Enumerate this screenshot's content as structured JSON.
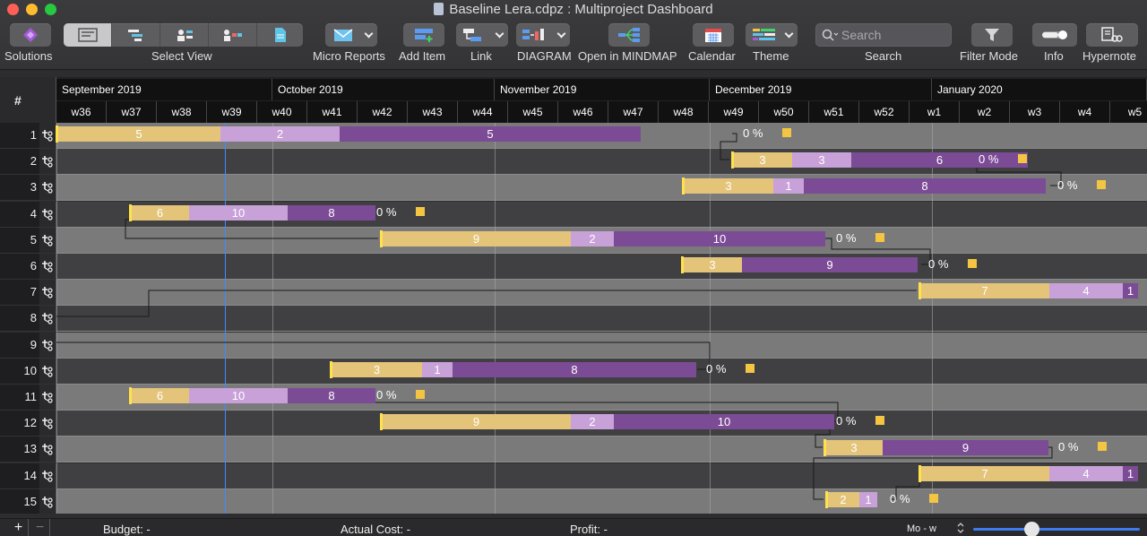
{
  "window": {
    "title": "Baseline  Lera.cdpz : Multiproject Dashboard"
  },
  "toolbar": {
    "solutions": "Solutions",
    "select_view": "Select View",
    "micro_reports": "Micro Reports",
    "add_item": "Add Item",
    "link": "Link",
    "diagram": "DIAGRAM",
    "open_mindmap": "Open in MINDMAP",
    "calendar": "Calendar",
    "theme": "Theme",
    "search_label": "Search",
    "search_placeholder": "Search",
    "filter_mode": "Filter Mode",
    "info": "Info",
    "hypernote": "Hypernote"
  },
  "gantt": {
    "row_header": "#",
    "months": [
      "September 2019",
      "October 2019",
      "November 2019",
      "December 2019",
      "January 2020"
    ],
    "weeks": [
      "w36",
      "w37",
      "w38",
      "w39",
      "w40",
      "w41",
      "w42",
      "w43",
      "w44",
      "w45",
      "w46",
      "w47",
      "w48",
      "w49",
      "w50",
      "w51",
      "w52",
      "w1",
      "w2",
      "w3",
      "w4",
      "w5"
    ],
    "rows": [
      {
        "num": "1",
        "segments": [
          "5",
          "2",
          "5"
        ],
        "percent": "0 %"
      },
      {
        "num": "2",
        "segments": [
          "3",
          "3",
          "6"
        ],
        "percent": "0 %"
      },
      {
        "num": "3",
        "segments": [
          "3",
          "1",
          "8"
        ],
        "percent": "0 %"
      },
      {
        "num": "4",
        "segments": [
          "6",
          "10",
          "8"
        ],
        "percent": "0 %"
      },
      {
        "num": "5",
        "segments": [
          "9",
          "2",
          "10"
        ],
        "percent": "0 %"
      },
      {
        "num": "6",
        "segments": [
          "3",
          "9"
        ],
        "percent": "0 %"
      },
      {
        "num": "7",
        "segments": [
          "7",
          "4",
          "1"
        ],
        "percent": ""
      },
      {
        "num": "8",
        "segments": [],
        "percent": ""
      },
      {
        "num": "9",
        "segments": [],
        "percent": ""
      },
      {
        "num": "10",
        "segments": [
          "3",
          "1",
          "8"
        ],
        "percent": "0 %"
      },
      {
        "num": "11",
        "segments": [
          "6",
          "10",
          "8"
        ],
        "percent": "0 %"
      },
      {
        "num": "12",
        "segments": [
          "9",
          "2",
          "10"
        ],
        "percent": "0 %"
      },
      {
        "num": "13",
        "segments": [
          "3",
          "9"
        ],
        "percent": "0 %"
      },
      {
        "num": "14",
        "segments": [
          "7",
          "4",
          "1"
        ],
        "percent": ""
      },
      {
        "num": "15",
        "segments": [
          "2",
          "1"
        ],
        "percent": "0 %"
      }
    ]
  },
  "status": {
    "budget": "Budget: -",
    "actual_cost": "Actual Cost: -",
    "profit": "Profit: -",
    "scale": "Mo - w",
    "zoom_level": 0.35
  }
}
